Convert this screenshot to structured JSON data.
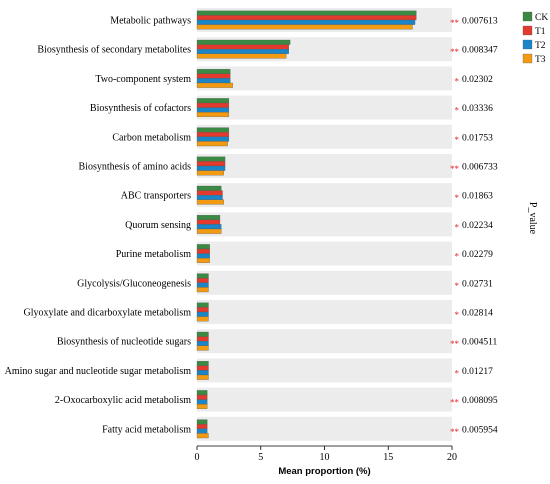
{
  "chart_data": {
    "type": "bar",
    "orientation": "horizontal",
    "xlabel": "Mean proportion (%)",
    "side_label": "P_value",
    "xlim": [
      0,
      20
    ],
    "xticks": [
      0,
      5,
      10,
      15,
      20
    ],
    "grid": false,
    "legend_position": "top-right",
    "categories": [
      "Metabolic pathways",
      "Biosynthesis of secondary metabolites",
      "Two-component system",
      "Biosynthesis of cofactors",
      "Carbon metabolism",
      "Biosynthesis of amino acids",
      "ABC transporters",
      "Quorum sensing",
      "Purine metabolism",
      "Glycolysis/Gluconeogenesis",
      "Glyoxylate and dicarboxylate metabolism",
      "Biosynthesis of nucleotide sugars",
      "Amino sugar and nucleotide sugar metabolism",
      "2-Oxocarboxylic acid metabolism",
      "Fatty acid metabolism"
    ],
    "series": [
      {
        "name": "CK",
        "color": "#3a8a44",
        "values": [
          17.2,
          7.3,
          2.6,
          2.5,
          2.5,
          2.2,
          1.9,
          1.8,
          1.0,
          0.9,
          0.9,
          0.9,
          0.9,
          0.8,
          0.8
        ]
      },
      {
        "name": "T1",
        "color": "#e23b2e",
        "values": [
          17.2,
          7.2,
          2.6,
          2.5,
          2.5,
          2.2,
          2.0,
          1.8,
          1.0,
          0.9,
          0.9,
          0.9,
          0.9,
          0.8,
          0.8
        ]
      },
      {
        "name": "T2",
        "color": "#1a86c8",
        "values": [
          17.1,
          7.2,
          2.6,
          2.5,
          2.5,
          2.2,
          2.0,
          1.9,
          1.0,
          0.9,
          0.9,
          0.9,
          0.9,
          0.8,
          0.8
        ]
      },
      {
        "name": "T3",
        "color": "#f29a12",
        "values": [
          16.9,
          7.0,
          2.8,
          2.5,
          2.4,
          2.1,
          2.1,
          1.9,
          1.0,
          0.9,
          0.9,
          0.9,
          0.9,
          0.8,
          0.9
        ]
      }
    ],
    "p_values": [
      "0.007613",
      "0.008347",
      "0.02302",
      "0.03336",
      "0.01753",
      "0.006733",
      "0.01863",
      "0.02234",
      "0.02279",
      "0.02731",
      "0.02814",
      "0.004511",
      "0.01217",
      "0.008095",
      "0.005954"
    ],
    "significance": [
      "**",
      "**",
      "*",
      "*",
      "*",
      "**",
      "*",
      "*",
      "*",
      "*",
      "*",
      "**",
      "*",
      "**",
      "**"
    ]
  }
}
